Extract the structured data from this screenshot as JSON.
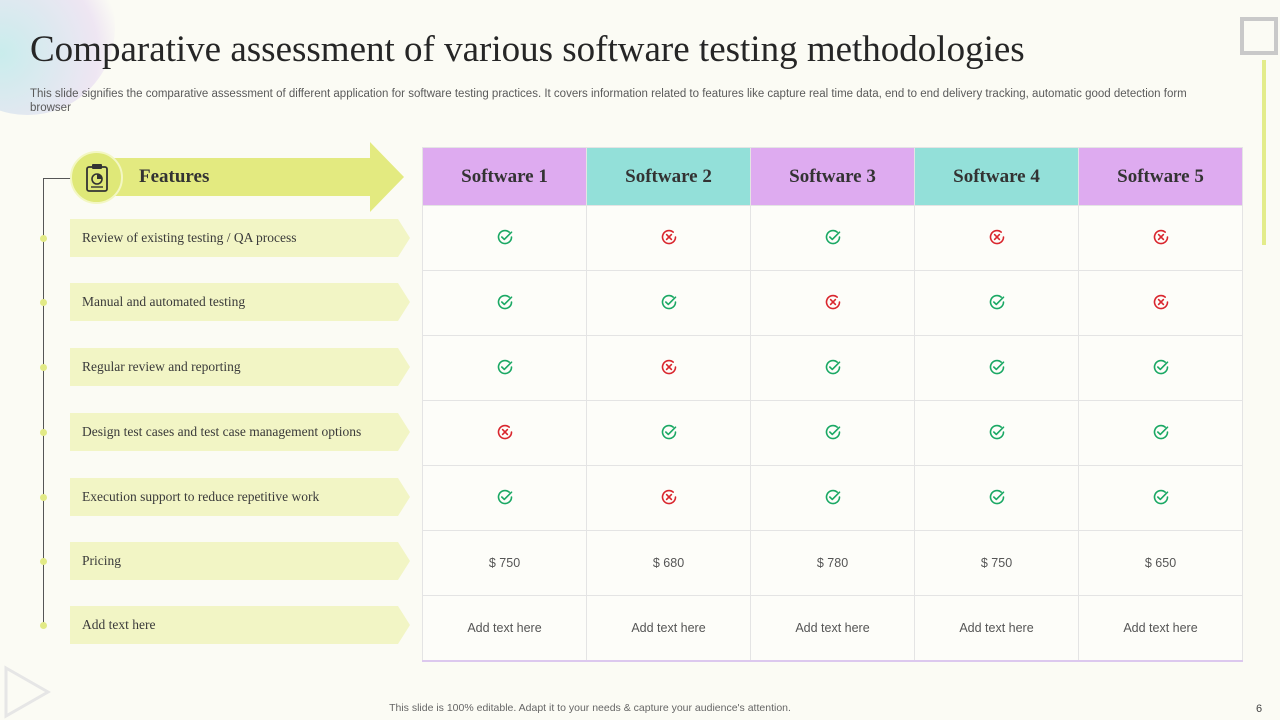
{
  "slide": {
    "title": "Comparative assessment of various software testing methodologies",
    "subtitle": "This slide signifies the comparative assessment of different application for software testing practices. It covers information related to features like capture real time data, end to  end delivery tracking, automatic good detection form browser",
    "footer": "This slide is 100% editable.  Adapt it to your needs & capture your audience's attention.",
    "page_number": "6"
  },
  "colors": {
    "check": "#1aa864",
    "cross": "#d9262e",
    "header_purple": "#deabf0",
    "header_teal": "#93e0d9",
    "feature_bg": "#f2f5c5",
    "accent_yellow": "#dfe878"
  },
  "features_header": {
    "label": "Features",
    "icon": "clipboard-chart-icon"
  },
  "columns": [
    "Software 1",
    "Software 2",
    "Software 3",
    "Software 4",
    "Software 5"
  ],
  "rows": [
    {
      "feature": "Review of existing testing / QA process",
      "values": [
        "check",
        "cross",
        "check",
        "cross",
        "cross"
      ]
    },
    {
      "feature": "Manual and automated testing",
      "values": [
        "check",
        "check",
        "cross",
        "check",
        "cross"
      ]
    },
    {
      "feature": "Regular review and reporting",
      "values": [
        "check",
        "cross",
        "check",
        "check",
        "check"
      ]
    },
    {
      "feature": "Design test cases and test case management  options",
      "values": [
        "cross",
        "check",
        "check",
        "check",
        "check"
      ]
    },
    {
      "feature": "Execution support to reduce repetitive  work",
      "values": [
        "check",
        "cross",
        "check",
        "check",
        "check"
      ]
    },
    {
      "feature": "Pricing",
      "values": [
        "$ 750",
        "$ 680",
        "$ 780",
        "$ 750",
        "$ 650"
      ]
    },
    {
      "feature": "Add text here",
      "values": [
        "Add text here",
        "Add text here",
        "Add text here",
        "Add text here",
        "Add text here"
      ]
    }
  ]
}
